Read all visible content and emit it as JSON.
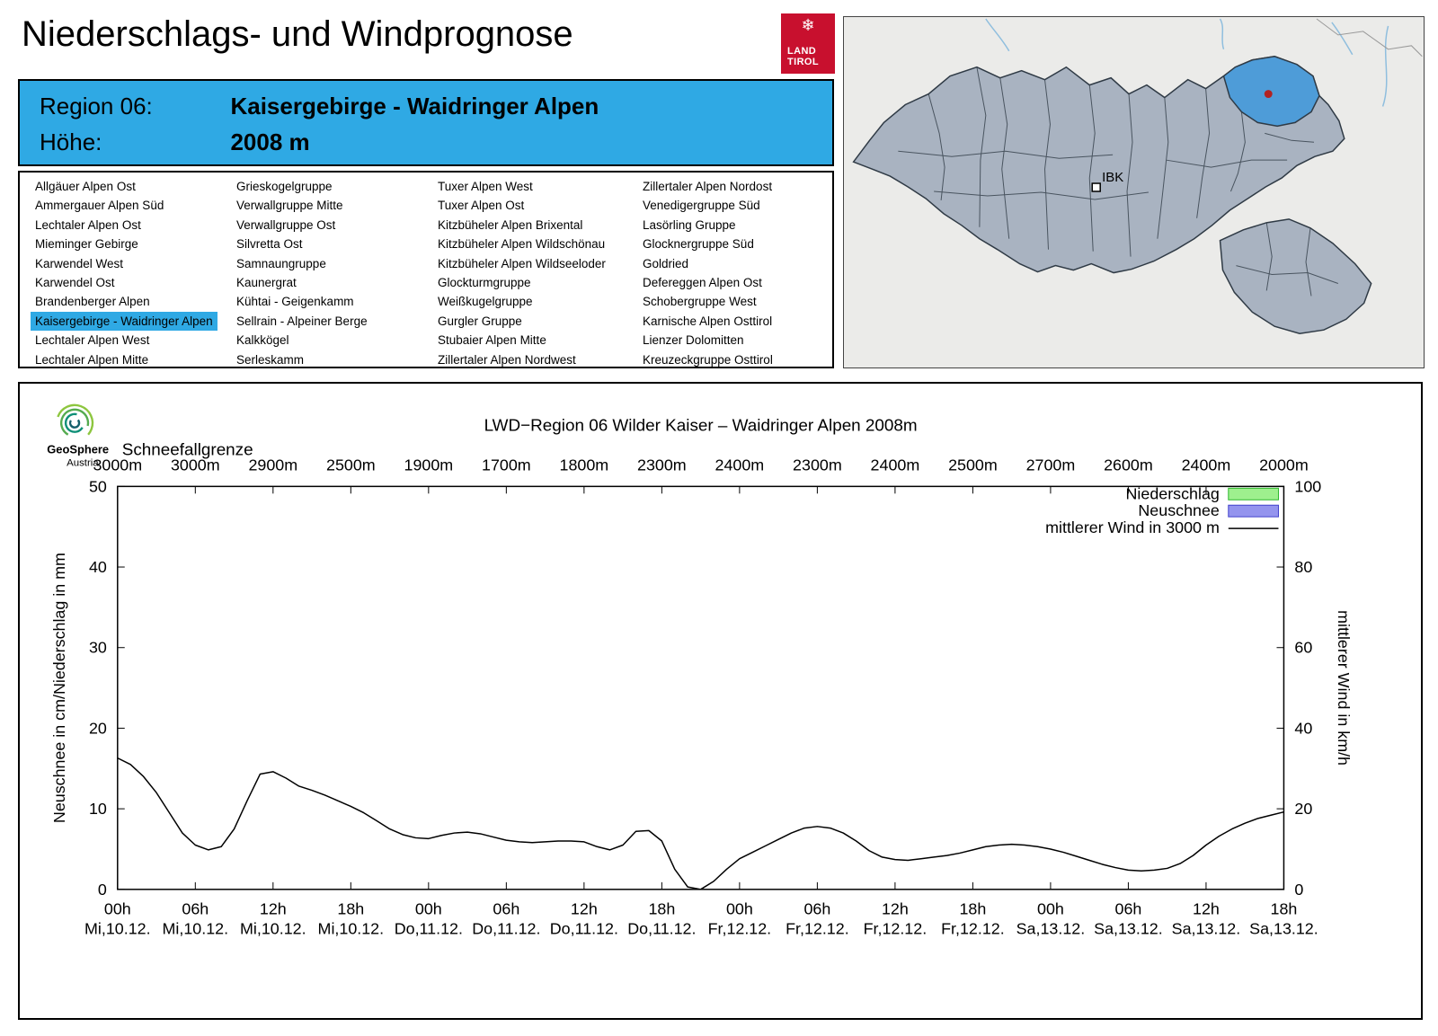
{
  "header": {
    "title": "Niederschlags- und Windprognose",
    "logo_snowflake": "❄",
    "logo_line1": "LAND",
    "logo_line2": "TIROL"
  },
  "region_info": {
    "region_label": "Region 06:",
    "region_value": "Kaisergebirge - Waidringer Alpen",
    "altitude_label": "Höhe:",
    "altitude_value": "2008 m"
  },
  "region_list": {
    "selected": "Kaisergebirge - Waidringer Alpen",
    "columns": [
      [
        "Allgäuer Alpen Ost",
        "Ammergauer Alpen Süd",
        "Lechtaler Alpen Ost",
        "Mieminger Gebirge",
        "Karwendel West",
        "Karwendel Ost",
        "Brandenberger Alpen",
        "Kaisergebirge - Waidringer Alpen",
        "Lechtaler Alpen West",
        "Lechtaler Alpen Mitte"
      ],
      [
        "Grieskogelgruppe",
        "Verwallgruppe Mitte",
        "Verwallgruppe Ost",
        "Silvretta Ost",
        "Samnaungruppe",
        "Kaunergrat",
        "Kühtai - Geigenkamm",
        "Sellrain - Alpeiner Berge",
        "Kalkkögel",
        "Serleskamm"
      ],
      [
        "Tuxer Alpen West",
        "Tuxer Alpen Ost",
        "Kitzbüheler Alpen Brixental",
        "Kitzbüheler Alpen Wildschönau",
        "Kitzbüheler Alpen Wildseeloder",
        "Glockturmgruppe",
        "Weißkugelgruppe",
        "Gurgler Gruppe",
        "Stubaier Alpen Mitte",
        "Zillertaler Alpen Nordwest"
      ],
      [
        "Zillertaler Alpen Nordost",
        "Venedigergruppe Süd",
        "Lasörling Gruppe",
        "Glocknergruppe Süd",
        "Goldried",
        "Defereggen Alpen Ost",
        "Schobergruppe West",
        "Karnische Alpen Osttirol",
        "Lienzer Dolomitten",
        "Kreuzeckgruppe Osttirol"
      ]
    ]
  },
  "map": {
    "city_label": "IBK",
    "selected_region": "Kaisergebirge - Waidringer Alpen",
    "selected_fill": "#4e9cd8",
    "marker_color": "#b22222"
  },
  "geosphere": {
    "line1": "GeoSphere",
    "line2": "Austria"
  },
  "chart_data": {
    "type": "line",
    "title": "LWD−Region 06 Wilder Kaiser – Waidringer Alpen 2008m",
    "snowline_label": "Schneefallgrenze",
    "snowline_values": [
      "3000m",
      "3000m",
      "2900m",
      "2500m",
      "1900m",
      "1700m",
      "1800m",
      "2300m",
      "2400m",
      "2300m",
      "2400m",
      "2500m",
      "2700m",
      "2600m",
      "2400m",
      "2000m"
    ],
    "ylabel_left": "Neuschnee in cm/Niederschlag in mm",
    "ylabel_right": "mittlerer Wind in km/h",
    "ylim_left": [
      0,
      50
    ],
    "ylim_right": [
      0,
      100
    ],
    "yticks_left": [
      0,
      10,
      20,
      30,
      40,
      50
    ],
    "yticks_right": [
      0,
      20,
      40,
      60,
      80,
      100
    ],
    "x_hours": [
      "00h",
      "06h",
      "12h",
      "18h",
      "00h",
      "06h",
      "12h",
      "18h",
      "00h",
      "06h",
      "12h",
      "18h",
      "00h",
      "06h",
      "12h",
      "18h"
    ],
    "x_dates": [
      "Mi,10.12.",
      "Mi,10.12.",
      "Mi,10.12.",
      "Mi,10.12.",
      "Do,11.12.",
      "Do,11.12.",
      "Do,11.12.",
      "Do,11.12.",
      "Fr,12.12.",
      "Fr,12.12.",
      "Fr,12.12.",
      "Fr,12.12.",
      "Sa,13.12.",
      "Sa,13.12.",
      "Sa,13.12.",
      "Sa,13.12."
    ],
    "x_total_hours": 90,
    "x_step_hours": 1,
    "grid": false,
    "legend_position": "top-right",
    "legend": [
      {
        "label": "Niederschlag",
        "type": "box",
        "fill": "#9ef08e",
        "stroke": "#2db82d"
      },
      {
        "label": "Neuschnee",
        "type": "box",
        "fill": "#9494ee",
        "stroke": "#4040cc"
      },
      {
        "label": "mittlerer Wind in 3000 m",
        "type": "line",
        "stroke": "#000000"
      }
    ],
    "series": [
      {
        "name": "mittlerer Wind in 3000 m",
        "unit": "km/h",
        "axis": "right",
        "values_kmh": [
          32.6,
          31.0,
          28.0,
          24.0,
          19.0,
          14.0,
          11.0,
          9.8,
          10.6,
          15.0,
          22.0,
          28.6,
          29.2,
          27.6,
          25.6,
          24.6,
          23.4,
          22.0,
          20.6,
          19.0,
          17.0,
          15.0,
          13.6,
          12.8,
          12.6,
          13.4,
          14.0,
          14.2,
          13.8,
          13.0,
          12.2,
          11.8,
          11.6,
          11.8,
          12.0,
          12.0,
          11.8,
          10.6,
          9.8,
          11.0,
          14.4,
          14.6,
          12.0,
          5.0,
          0.6,
          0.0,
          2.0,
          5.0,
          7.6,
          9.2,
          10.8,
          12.4,
          14.0,
          15.2,
          15.6,
          15.2,
          14.0,
          12.0,
          9.6,
          8.0,
          7.4,
          7.2,
          7.6,
          8.0,
          8.4,
          9.0,
          9.8,
          10.6,
          11.0,
          11.2,
          11.0,
          10.6,
          10.0,
          9.2,
          8.2,
          7.2,
          6.2,
          5.4,
          4.8,
          4.6,
          4.8,
          5.2,
          6.4,
          8.4,
          11.0,
          13.2,
          15.0,
          16.4,
          17.6,
          18.4,
          19.2
        ]
      }
    ]
  },
  "colors": {
    "accent_blue": "#2fa9e4",
    "tirol_red": "#c8102e"
  }
}
